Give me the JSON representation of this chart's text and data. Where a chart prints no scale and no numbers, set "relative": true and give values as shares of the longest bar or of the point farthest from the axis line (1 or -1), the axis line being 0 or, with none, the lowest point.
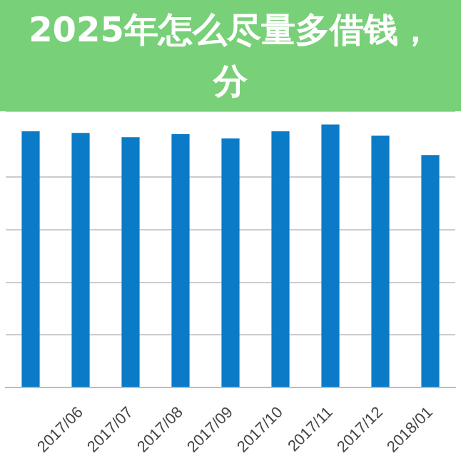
{
  "chart_data": {
    "type": "bar",
    "title": "2025年怎么尽量多借钱，分",
    "categories": [
      null,
      "2017/06",
      "2017/07",
      "2017/08",
      "2017/09",
      "2017/10",
      "2017/11",
      "2017/12",
      "2018/01"
    ],
    "values": [
      0.974,
      0.968,
      0.952,
      0.963,
      0.947,
      0.974,
      1,
      0.958,
      0.884
    ],
    "color": "#0b7bc8",
    "relative": true,
    "grid": "y",
    "legend": false
  }
}
